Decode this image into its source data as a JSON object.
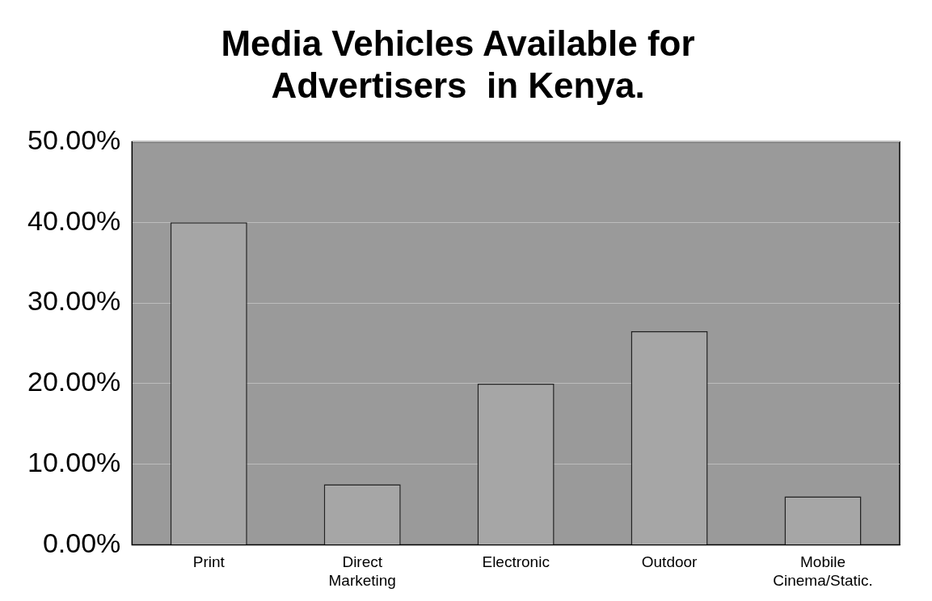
{
  "chart_data": {
    "type": "bar",
    "title": "Media Vehicles Available for Advertisers  in Kenya.",
    "categories": [
      "Print",
      "Direct Marketing",
      "Electronic",
      "Outdoor",
      "Mobile Cinema/Static."
    ],
    "values": [
      40,
      7.5,
      20,
      26.5,
      6
    ],
    "color": "#a6a6a6",
    "ylim": [
      0,
      50
    ],
    "yticks": [
      {
        "value": 0,
        "label": "0.00%"
      },
      {
        "value": 10,
        "label": "10.00%"
      },
      {
        "value": 20,
        "label": "20.00%"
      },
      {
        "value": 30,
        "label": "30.00%"
      },
      {
        "value": 40,
        "label": "40.00%"
      },
      {
        "value": 50,
        "label": "50.00%"
      }
    ],
    "grid": "y"
  }
}
